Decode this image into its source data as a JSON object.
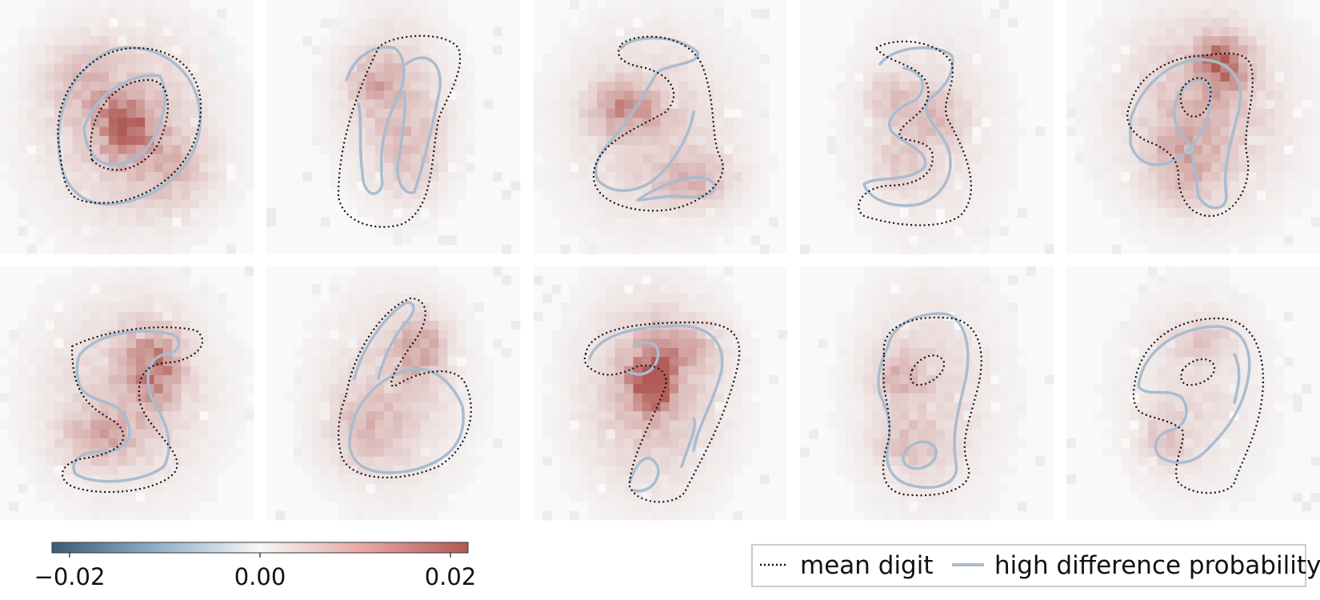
{
  "chart_data": {
    "type": "heatmap",
    "grid": {
      "rows": 2,
      "cols": 5
    },
    "colorscale": {
      "min": -0.02,
      "max": 0.02,
      "negative_color": "#3d5a78",
      "mid_color": "#f7f7f7",
      "positive_color": "#b05a55",
      "ticks": [
        {
          "value": -0.02,
          "label": "−0.02"
        },
        {
          "value": 0.0,
          "label": "0.00"
        },
        {
          "value": 0.02,
          "label": "0.02"
        }
      ]
    },
    "legend": {
      "placement": "bottom-right",
      "entries": [
        {
          "label": "mean digit",
          "style": "dotted",
          "color": "#111111"
        },
        {
          "label": "high difference probability",
          "style": "solid",
          "color": "#a9bcd0"
        }
      ]
    },
    "panels": [
      {
        "digit": 0,
        "peak": 0.012
      },
      {
        "digit": 1,
        "peak": 0.008
      },
      {
        "digit": 2,
        "peak": 0.01
      },
      {
        "digit": 3,
        "peak": 0.007
      },
      {
        "digit": 4,
        "peak": 0.014
      },
      {
        "digit": 5,
        "peak": 0.012
      },
      {
        "digit": 6,
        "peak": 0.01
      },
      {
        "digit": 7,
        "peak": 0.018
      },
      {
        "digit": 8,
        "peak": 0.009
      },
      {
        "digit": 9,
        "peak": 0.008
      }
    ]
  }
}
